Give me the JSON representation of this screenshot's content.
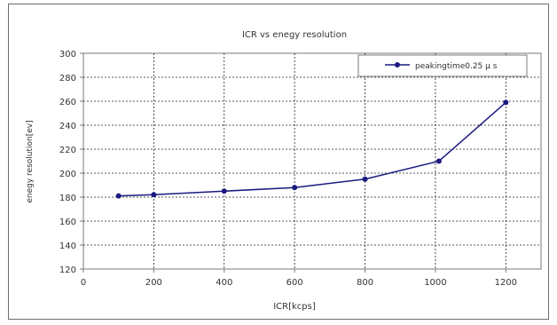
{
  "chart_data": {
    "type": "line",
    "title": "ICR vs enegy resolution",
    "xlabel": "ICR[kcps]",
    "ylabel": "enegy resolution[ev]",
    "xlim": [
      0,
      1300
    ],
    "ylim": [
      120,
      300
    ],
    "xticks": [
      0,
      200,
      400,
      600,
      800,
      1000,
      1200
    ],
    "yticks": [
      120,
      140,
      160,
      180,
      200,
      220,
      240,
      260,
      280,
      300
    ],
    "grid": true,
    "legend_position": "top-right",
    "series": [
      {
        "name": "peakingtime0.25 μ s",
        "color": "#1a1a80",
        "x": [
          100,
          200,
          400,
          600,
          800,
          1010,
          1200
        ],
        "y": [
          181,
          182,
          185,
          188,
          195,
          210,
          259
        ]
      }
    ]
  }
}
